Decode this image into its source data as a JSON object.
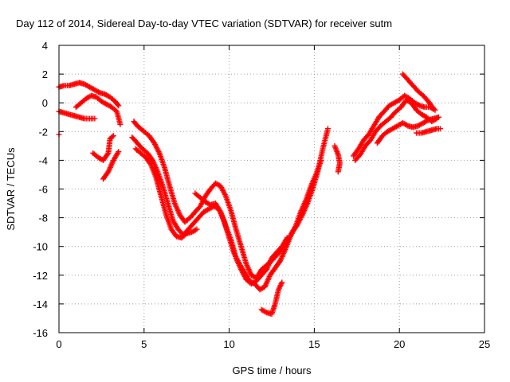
{
  "chart_data": {
    "type": "scatter",
    "title": "Day 112 of 2014, Sidereal Day-to-day VTEC variation (SDTVAR) for receiver sutm",
    "xlabel": "GPS time / hours",
    "ylabel": "SDTVAR / TECUs",
    "xlim": [
      0,
      25
    ],
    "ylim": [
      -16,
      4
    ],
    "xticks": [
      0,
      5,
      10,
      15,
      20,
      25
    ],
    "yticks": [
      -16,
      -14,
      -12,
      -10,
      -8,
      -6,
      -4,
      -2,
      0,
      2,
      4
    ],
    "grid": true,
    "legend": "none",
    "marker": "+",
    "color": "#ff0000",
    "series": [
      {
        "values": [
          [
            0.0,
            1.1
          ],
          [
            0.3,
            1.2
          ],
          [
            0.6,
            1.2
          ],
          [
            0.9,
            1.3
          ],
          [
            1.2,
            1.4
          ],
          [
            1.5,
            1.3
          ],
          [
            1.8,
            1.1
          ],
          [
            2.1,
            0.9
          ],
          [
            2.4,
            0.7
          ],
          [
            2.7,
            0.6
          ],
          [
            3.0,
            0.4
          ],
          [
            3.3,
            0.1
          ],
          [
            3.5,
            -0.2
          ]
        ]
      },
      {
        "values": [
          [
            0.0,
            -0.6
          ],
          [
            0.3,
            -0.7
          ],
          [
            0.6,
            -0.8
          ],
          [
            0.9,
            -0.9
          ],
          [
            1.2,
            -1.0
          ],
          [
            1.5,
            -1.1
          ],
          [
            1.8,
            -1.1
          ],
          [
            2.1,
            -1.1
          ]
        ]
      },
      {
        "values": [
          [
            0.0,
            -2.2
          ]
        ]
      },
      {
        "values": [
          [
            1.0,
            -0.3
          ],
          [
            1.3,
            0.0
          ],
          [
            1.6,
            0.3
          ],
          [
            1.9,
            0.5
          ],
          [
            2.2,
            0.4
          ],
          [
            2.5,
            0.1
          ],
          [
            2.8,
            -0.1
          ],
          [
            3.1,
            -0.3
          ],
          [
            3.4,
            -0.6
          ],
          [
            3.6,
            -1.5
          ]
        ]
      },
      {
        "values": [
          [
            2.0,
            -3.5
          ],
          [
            2.3,
            -3.8
          ],
          [
            2.6,
            -4.0
          ],
          [
            2.9,
            -3.5
          ],
          [
            3.0,
            -2.5
          ],
          [
            3.2,
            -2.3
          ]
        ]
      },
      {
        "values": [
          [
            2.6,
            -5.3
          ],
          [
            2.9,
            -4.8
          ],
          [
            3.2,
            -4.0
          ],
          [
            3.5,
            -3.4
          ]
        ]
      },
      {
        "values": [
          [
            4.4,
            -1.3
          ],
          [
            4.6,
            -1.6
          ],
          [
            4.8,
            -1.8
          ],
          [
            5.0,
            -2.0
          ],
          [
            5.3,
            -2.3
          ],
          [
            5.6,
            -2.8
          ],
          [
            5.9,
            -3.5
          ],
          [
            6.2,
            -4.5
          ],
          [
            6.5,
            -5.8
          ],
          [
            6.8,
            -7.0
          ],
          [
            7.1,
            -7.8
          ],
          [
            7.4,
            -8.3
          ],
          [
            7.7,
            -8.0
          ],
          [
            8.0,
            -7.6
          ],
          [
            8.3,
            -7.2
          ],
          [
            8.6,
            -6.5
          ],
          [
            8.9,
            -6.0
          ],
          [
            9.2,
            -5.6
          ],
          [
            9.5,
            -5.8
          ],
          [
            9.8,
            -6.5
          ],
          [
            10.1,
            -7.5
          ],
          [
            10.4,
            -8.8
          ],
          [
            10.7,
            -10.0
          ],
          [
            11.0,
            -11.2
          ],
          [
            11.3,
            -12.0
          ],
          [
            11.6,
            -12.2
          ],
          [
            11.9,
            -11.6
          ],
          [
            12.2,
            -11.3
          ],
          [
            12.5,
            -11.0
          ],
          [
            12.8,
            -10.6
          ],
          [
            13.1,
            -10.2
          ],
          [
            13.4,
            -9.7
          ],
          [
            13.7,
            -9.0
          ],
          [
            14.0,
            -8.5
          ],
          [
            14.3,
            -7.8
          ],
          [
            14.6,
            -7.0
          ],
          [
            14.9,
            -6.0
          ],
          [
            15.2,
            -4.8
          ],
          [
            15.5,
            -3.2
          ],
          [
            15.8,
            -1.8
          ]
        ]
      },
      {
        "values": [
          [
            4.3,
            -2.4
          ],
          [
            4.6,
            -2.8
          ],
          [
            4.9,
            -3.2
          ],
          [
            5.2,
            -3.5
          ],
          [
            5.5,
            -4.0
          ],
          [
            5.8,
            -4.8
          ],
          [
            6.1,
            -5.8
          ],
          [
            6.4,
            -7.0
          ],
          [
            6.7,
            -8.2
          ],
          [
            7.0,
            -8.8
          ],
          [
            7.3,
            -9.2
          ],
          [
            7.6,
            -8.8
          ],
          [
            7.9,
            -8.4
          ],
          [
            8.2,
            -8.0
          ],
          [
            8.5,
            -7.6
          ],
          [
            8.8,
            -7.4
          ],
          [
            9.1,
            -7.2
          ],
          [
            9.4,
            -7.4
          ],
          [
            9.7,
            -8.2
          ],
          [
            10.0,
            -9.4
          ],
          [
            10.3,
            -10.5
          ],
          [
            10.6,
            -11.2
          ],
          [
            10.9,
            -11.8
          ],
          [
            11.2,
            -12.4
          ],
          [
            11.5,
            -12.6
          ],
          [
            11.8,
            -13.0
          ],
          [
            12.1,
            -12.8
          ],
          [
            12.4,
            -12.0
          ],
          [
            12.7,
            -11.5
          ],
          [
            13.0,
            -11.0
          ],
          [
            13.3,
            -10.2
          ],
          [
            13.6,
            -9.3
          ],
          [
            13.9,
            -8.6
          ],
          [
            14.2,
            -7.6
          ],
          [
            14.5,
            -6.8
          ],
          [
            14.8,
            -5.8
          ],
          [
            15.1,
            -5.0
          ],
          [
            15.4,
            -4.0
          ]
        ]
      },
      {
        "values": [
          [
            4.5,
            -3.2
          ],
          [
            4.8,
            -3.5
          ],
          [
            5.1,
            -3.8
          ],
          [
            5.4,
            -4.3
          ],
          [
            5.7,
            -5.2
          ],
          [
            6.0,
            -6.5
          ],
          [
            6.3,
            -7.8
          ],
          [
            6.6,
            -8.8
          ],
          [
            6.9,
            -9.3
          ],
          [
            7.2,
            -9.4
          ],
          [
            7.5,
            -9.1
          ],
          [
            7.8,
            -9.0
          ],
          [
            8.1,
            -8.8
          ]
        ]
      },
      {
        "values": [
          [
            8.0,
            -6.3
          ],
          [
            8.3,
            -6.6
          ],
          [
            8.6,
            -6.9
          ],
          [
            8.9,
            -7.1
          ],
          [
            9.2,
            -7.0
          ],
          [
            9.5,
            -7.6
          ],
          [
            9.8,
            -8.6
          ],
          [
            10.1,
            -9.5
          ],
          [
            10.4,
            -10.8
          ],
          [
            10.7,
            -11.6
          ],
          [
            11.0,
            -12.3
          ],
          [
            11.3,
            -12.6
          ],
          [
            11.6,
            -12.4
          ],
          [
            11.9,
            -12.0
          ],
          [
            12.2,
            -11.6
          ],
          [
            12.5,
            -10.8
          ],
          [
            12.8,
            -10.4
          ],
          [
            13.1,
            -10.0
          ],
          [
            13.4,
            -9.4
          ]
        ]
      },
      {
        "values": [
          [
            11.9,
            -14.4
          ],
          [
            12.2,
            -14.6
          ],
          [
            12.5,
            -14.7
          ],
          [
            12.7,
            -14.0
          ],
          [
            12.9,
            -13.0
          ],
          [
            13.1,
            -12.5
          ]
        ]
      },
      {
        "values": [
          [
            16.2,
            -3.0
          ],
          [
            16.4,
            -3.6
          ],
          [
            16.5,
            -4.2
          ],
          [
            16.4,
            -4.8
          ]
        ]
      },
      {
        "values": [
          [
            17.3,
            -3.7
          ],
          [
            17.6,
            -3.2
          ],
          [
            17.9,
            -2.6
          ],
          [
            18.2,
            -2.2
          ],
          [
            18.5,
            -1.6
          ],
          [
            18.8,
            -1.0
          ],
          [
            19.1,
            -0.6
          ],
          [
            19.4,
            -0.2
          ],
          [
            19.7,
            0.0
          ],
          [
            20.0,
            0.2
          ],
          [
            20.3,
            0.5
          ],
          [
            20.6,
            0.3
          ],
          [
            20.9,
            0.0
          ],
          [
            21.2,
            -0.2
          ],
          [
            21.5,
            -0.3
          ],
          [
            21.8,
            -0.3
          ],
          [
            22.1,
            -0.5
          ]
        ]
      },
      {
        "values": [
          [
            17.4,
            -4.0
          ],
          [
            17.7,
            -3.6
          ],
          [
            18.0,
            -3.0
          ],
          [
            18.3,
            -2.6
          ],
          [
            18.6,
            -2.0
          ],
          [
            18.9,
            -1.6
          ],
          [
            19.2,
            -1.3
          ],
          [
            19.5,
            -1.0
          ],
          [
            19.8,
            -0.6
          ],
          [
            20.1,
            -0.3
          ],
          [
            20.4,
            0.2
          ],
          [
            20.7,
            0.0
          ],
          [
            21.0,
            -0.5
          ],
          [
            21.3,
            -0.8
          ],
          [
            21.6,
            -1.0
          ],
          [
            21.9,
            -1.3
          ],
          [
            22.2,
            -1.1
          ]
        ]
      },
      {
        "values": [
          [
            18.7,
            -2.8
          ],
          [
            19.0,
            -2.3
          ],
          [
            19.3,
            -2.0
          ],
          [
            19.6,
            -1.8
          ],
          [
            19.9,
            -1.6
          ],
          [
            20.2,
            -1.4
          ],
          [
            20.5,
            -1.6
          ],
          [
            20.8,
            -1.7
          ],
          [
            21.1,
            -1.6
          ],
          [
            21.4,
            -1.4
          ],
          [
            21.7,
            -1.2
          ],
          [
            22.0,
            -1.1
          ],
          [
            22.3,
            -1.0
          ]
        ]
      },
      {
        "values": [
          [
            20.2,
            2.0
          ],
          [
            20.5,
            1.6
          ],
          [
            20.8,
            1.2
          ],
          [
            21.1,
            0.8
          ],
          [
            21.4,
            0.5
          ],
          [
            21.7,
            0.1
          ],
          [
            22.0,
            -0.4
          ]
        ]
      },
      {
        "values": [
          [
            21.0,
            -2.1
          ],
          [
            21.3,
            -2.1
          ],
          [
            21.6,
            -2.0
          ],
          [
            21.9,
            -1.9
          ],
          [
            22.2,
            -1.8
          ],
          [
            22.4,
            -1.8
          ]
        ]
      }
    ]
  }
}
